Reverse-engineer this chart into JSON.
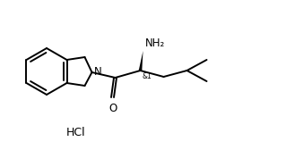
{
  "background": "#ffffff",
  "line_color": "#000000",
  "line_width": 1.4,
  "font_size": 8.5,
  "hcl_label": "HCl",
  "nh2_label": "NH₂",
  "n_label": "N",
  "o_label": "O",
  "stereo_label": "&1",
  "figsize": [
    3.19,
    1.68
  ],
  "dpi": 100,
  "xlim": [
    0,
    319
  ],
  "ylim": [
    0,
    168
  ]
}
